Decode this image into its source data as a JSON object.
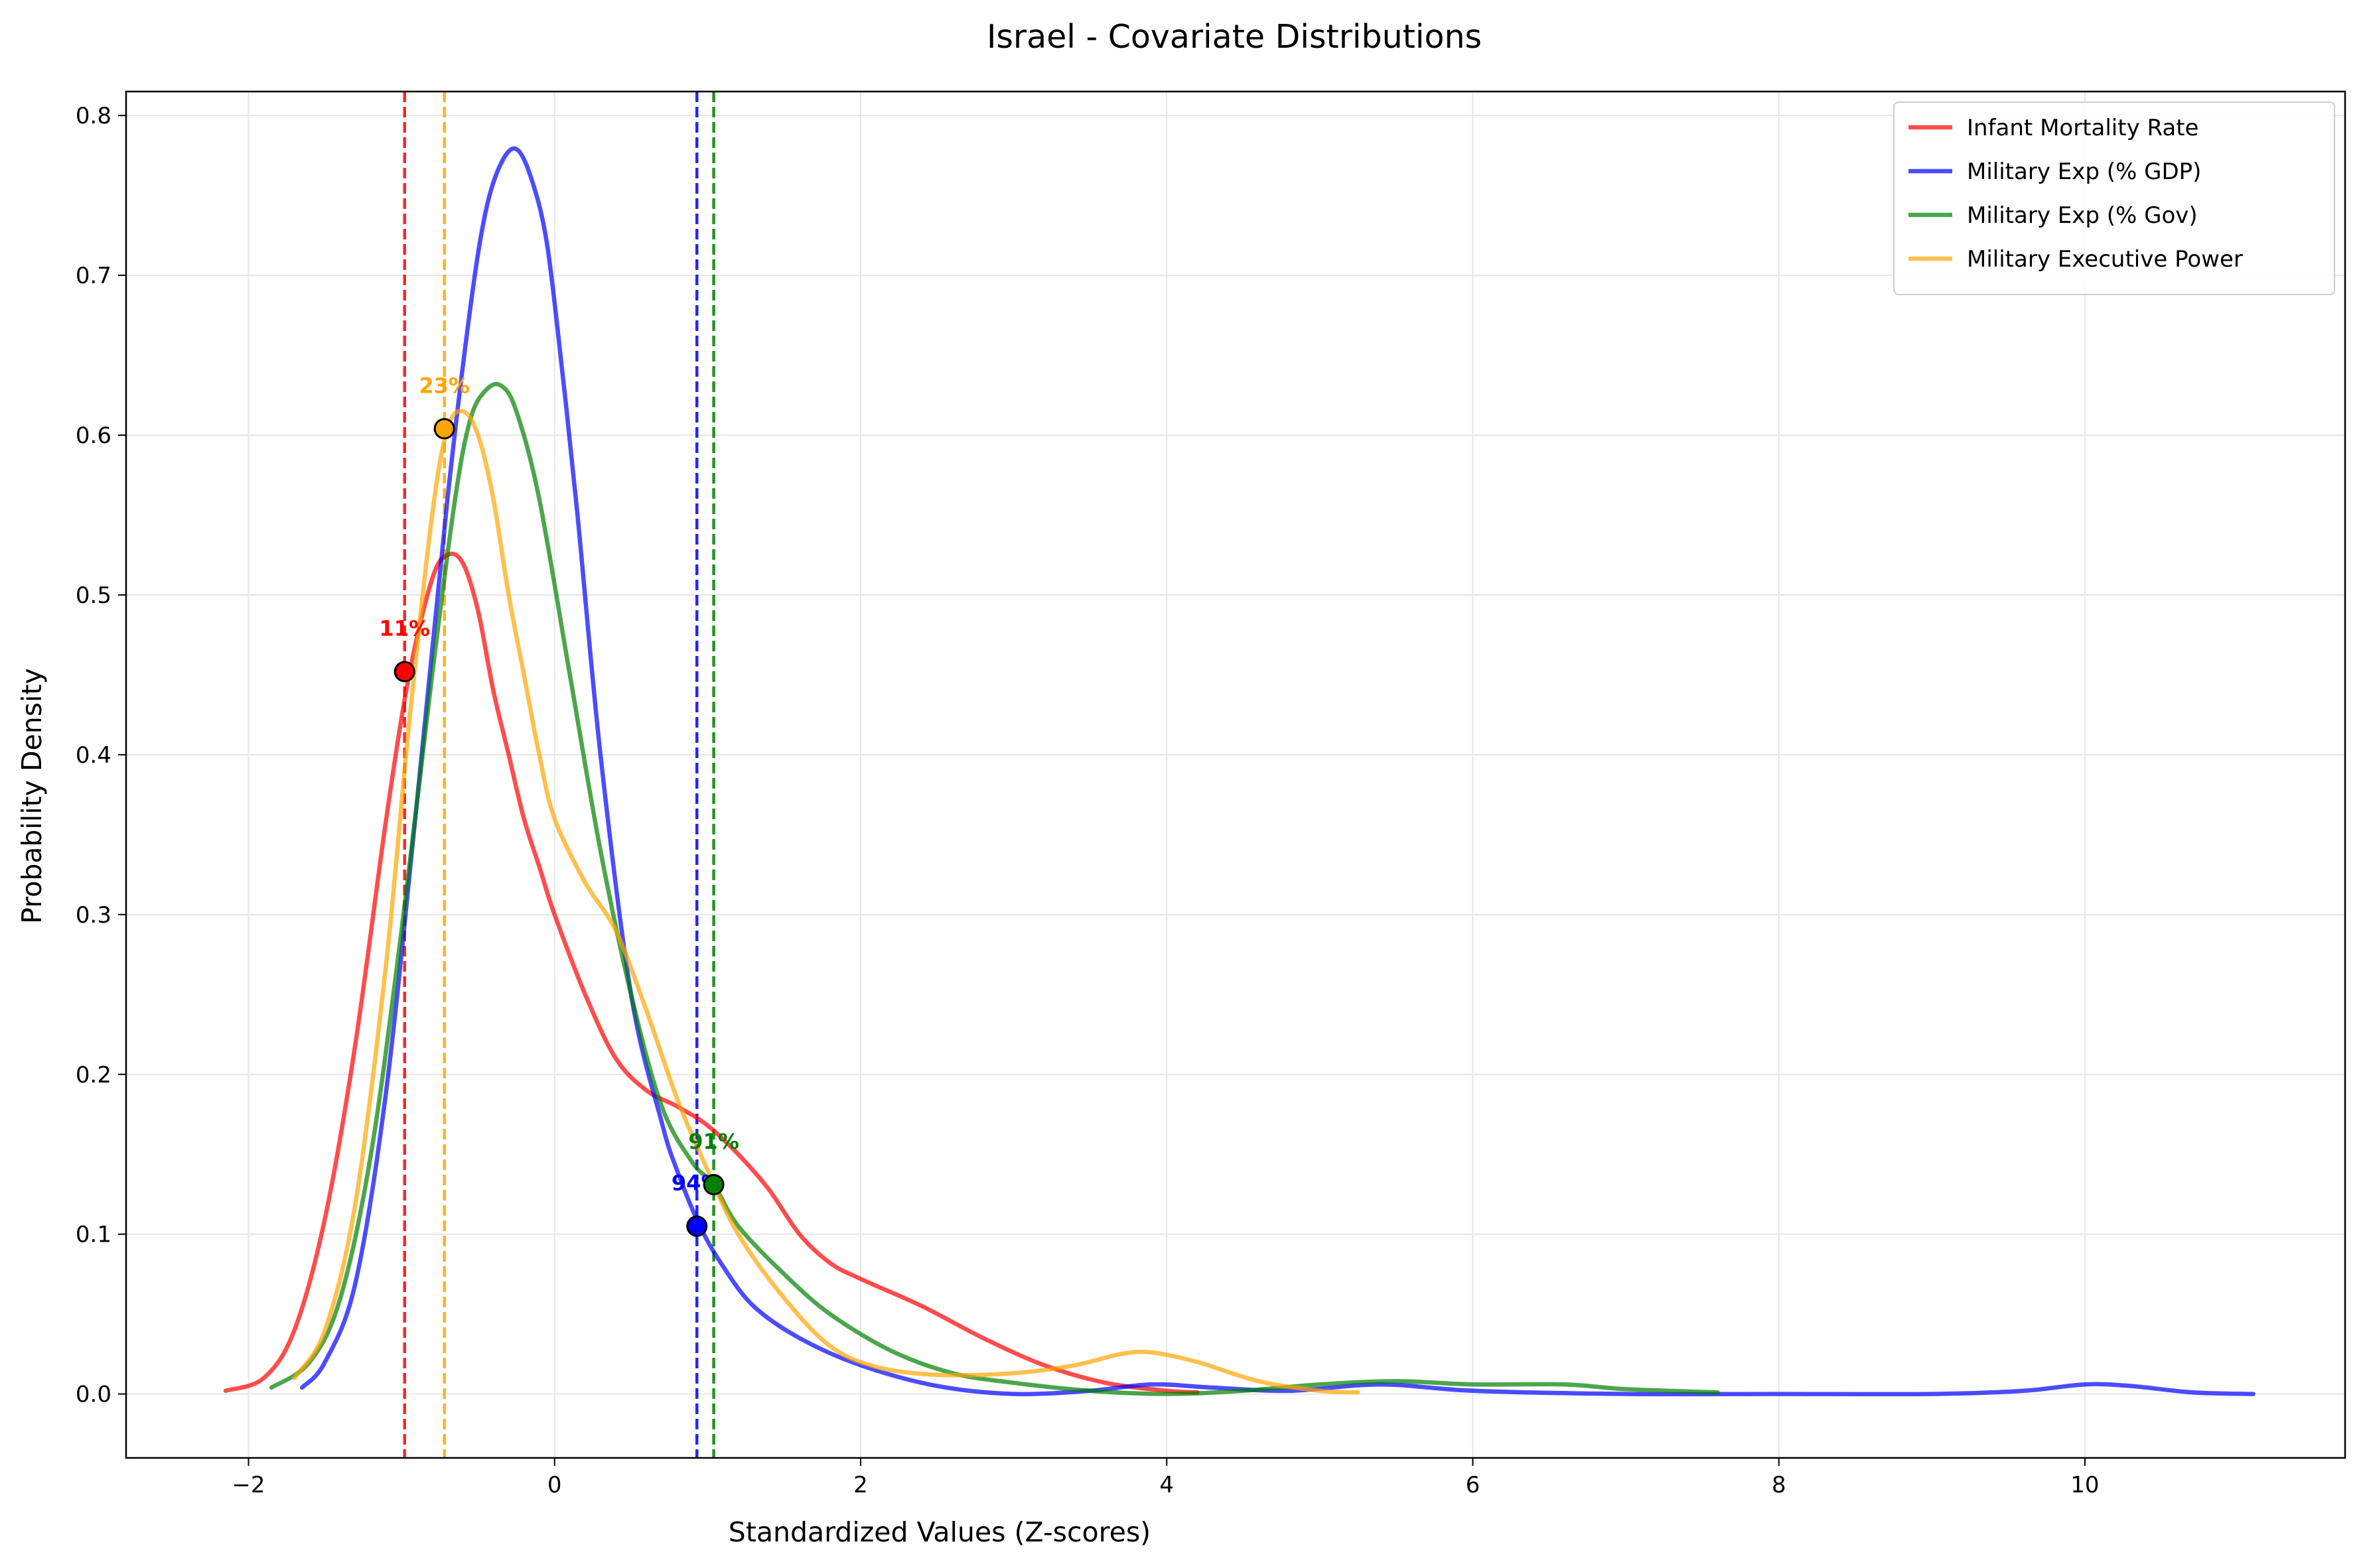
{
  "chart_data": {
    "type": "line",
    "title": "Israel - Covariate Distributions",
    "xlabel": "Standardized Values (Z-scores)",
    "ylabel": "Probability Density",
    "xlim": [
      -2.8,
      11.7
    ],
    "ylim": [
      -0.04,
      0.815
    ],
    "xticks": [
      -2,
      0,
      2,
      4,
      6,
      8,
      10
    ],
    "yticks": [
      0.0,
      0.1,
      0.2,
      0.3,
      0.4,
      0.5,
      0.6,
      0.7,
      0.8
    ],
    "grid": true,
    "legend_position": "top-right",
    "series": [
      {
        "name": "Infant Mortality Rate",
        "color": "#ff0000",
        "points": [
          [
            -2.15,
            0.002
          ],
          [
            -1.9,
            0.01
          ],
          [
            -1.7,
            0.04
          ],
          [
            -1.5,
            0.11
          ],
          [
            -1.3,
            0.22
          ],
          [
            -1.1,
            0.36
          ],
          [
            -0.95,
            0.45
          ],
          [
            -0.8,
            0.51
          ],
          [
            -0.7,
            0.525
          ],
          [
            -0.6,
            0.52
          ],
          [
            -0.5,
            0.49
          ],
          [
            -0.4,
            0.44
          ],
          [
            -0.3,
            0.4
          ],
          [
            -0.2,
            0.36
          ],
          [
            -0.1,
            0.33
          ],
          [
            0.0,
            0.3
          ],
          [
            0.2,
            0.25
          ],
          [
            0.4,
            0.21
          ],
          [
            0.6,
            0.19
          ],
          [
            0.8,
            0.18
          ],
          [
            1.0,
            0.168
          ],
          [
            1.2,
            0.15
          ],
          [
            1.4,
            0.128
          ],
          [
            1.6,
            0.1
          ],
          [
            1.8,
            0.082
          ],
          [
            2.0,
            0.072
          ],
          [
            2.4,
            0.055
          ],
          [
            2.8,
            0.035
          ],
          [
            3.2,
            0.018
          ],
          [
            3.6,
            0.007
          ],
          [
            4.0,
            0.002
          ],
          [
            4.2,
            0.001
          ]
        ],
        "marker": {
          "x": -0.98,
          "y": 0.452,
          "label": "11%"
        }
      },
      {
        "name": "Military Exp (% GDP)",
        "color": "#0000ff",
        "points": [
          [
            -1.65,
            0.004
          ],
          [
            -1.5,
            0.02
          ],
          [
            -1.3,
            0.07
          ],
          [
            -1.1,
            0.19
          ],
          [
            -0.9,
            0.37
          ],
          [
            -0.7,
            0.56
          ],
          [
            -0.55,
            0.68
          ],
          [
            -0.45,
            0.74
          ],
          [
            -0.35,
            0.77
          ],
          [
            -0.25,
            0.779
          ],
          [
            -0.15,
            0.76
          ],
          [
            -0.05,
            0.72
          ],
          [
            0.05,
            0.64
          ],
          [
            0.15,
            0.55
          ],
          [
            0.3,
            0.4
          ],
          [
            0.5,
            0.25
          ],
          [
            0.7,
            0.17
          ],
          [
            0.8,
            0.14
          ],
          [
            0.95,
            0.105
          ],
          [
            1.1,
            0.08
          ],
          [
            1.3,
            0.055
          ],
          [
            1.6,
            0.035
          ],
          [
            2.0,
            0.018
          ],
          [
            2.5,
            0.005
          ],
          [
            3.0,
            0.0
          ],
          [
            3.5,
            0.002
          ],
          [
            3.9,
            0.006
          ],
          [
            4.3,
            0.004
          ],
          [
            4.8,
            0.002
          ],
          [
            5.4,
            0.006
          ],
          [
            6.0,
            0.002
          ],
          [
            7.0,
            0.0
          ],
          [
            8.0,
            0.0
          ],
          [
            9.0,
            0.0
          ],
          [
            9.6,
            0.002
          ],
          [
            10.0,
            0.006
          ],
          [
            10.3,
            0.005
          ],
          [
            10.7,
            0.001
          ],
          [
            11.1,
            0.0
          ]
        ],
        "marker": {
          "x": 0.93,
          "y": 0.105,
          "label": "94%"
        }
      },
      {
        "name": "Military Exp (% Gov)",
        "color": "#008000",
        "points": [
          [
            -1.85,
            0.004
          ],
          [
            -1.6,
            0.02
          ],
          [
            -1.4,
            0.06
          ],
          [
            -1.2,
            0.15
          ],
          [
            -1.0,
            0.29
          ],
          [
            -0.8,
            0.45
          ],
          [
            -0.65,
            0.56
          ],
          [
            -0.55,
            0.61
          ],
          [
            -0.45,
            0.628
          ],
          [
            -0.35,
            0.631
          ],
          [
            -0.25,
            0.615
          ],
          [
            -0.1,
            0.56
          ],
          [
            0.1,
            0.45
          ],
          [
            0.3,
            0.34
          ],
          [
            0.5,
            0.25
          ],
          [
            0.7,
            0.18
          ],
          [
            0.9,
            0.145
          ],
          [
            1.04,
            0.131
          ],
          [
            1.2,
            0.105
          ],
          [
            1.5,
            0.075
          ],
          [
            1.8,
            0.05
          ],
          [
            2.2,
            0.027
          ],
          [
            2.6,
            0.013
          ],
          [
            3.0,
            0.007
          ],
          [
            3.5,
            0.002
          ],
          [
            4.0,
            0.0
          ],
          [
            4.5,
            0.002
          ],
          [
            5.0,
            0.006
          ],
          [
            5.5,
            0.008
          ],
          [
            6.0,
            0.006
          ],
          [
            6.6,
            0.006
          ],
          [
            7.0,
            0.003
          ],
          [
            7.6,
            0.001
          ]
        ],
        "marker": {
          "x": 1.04,
          "y": 0.131,
          "label": "91%"
        }
      },
      {
        "name": "Military Executive Power",
        "color": "#ffa500",
        "points": [
          [
            -1.7,
            0.01
          ],
          [
            -1.5,
            0.04
          ],
          [
            -1.3,
            0.12
          ],
          [
            -1.1,
            0.27
          ],
          [
            -0.95,
            0.42
          ],
          [
            -0.8,
            0.55
          ],
          [
            -0.7,
            0.604
          ],
          [
            -0.6,
            0.615
          ],
          [
            -0.5,
            0.6
          ],
          [
            -0.4,
            0.56
          ],
          [
            -0.3,
            0.5
          ],
          [
            -0.2,
            0.45
          ],
          [
            -0.1,
            0.4
          ],
          [
            0.0,
            0.36
          ],
          [
            0.2,
            0.32
          ],
          [
            0.4,
            0.29
          ],
          [
            0.6,
            0.24
          ],
          [
            0.8,
            0.185
          ],
          [
            1.0,
            0.14
          ],
          [
            1.2,
            0.1
          ],
          [
            1.5,
            0.06
          ],
          [
            1.8,
            0.03
          ],
          [
            2.1,
            0.017
          ],
          [
            2.5,
            0.012
          ],
          [
            3.0,
            0.013
          ],
          [
            3.4,
            0.018
          ],
          [
            3.7,
            0.025
          ],
          [
            3.9,
            0.026
          ],
          [
            4.2,
            0.02
          ],
          [
            4.6,
            0.008
          ],
          [
            5.0,
            0.002
          ],
          [
            5.25,
            0.001
          ]
        ],
        "marker": {
          "x": -0.72,
          "y": 0.604,
          "label": "23%"
        }
      }
    ],
    "vlines": [
      {
        "x": -0.98,
        "color": "#ff0000"
      },
      {
        "x": -0.72,
        "color": "#ffa500"
      },
      {
        "x": 0.93,
        "color": "#0000ff"
      },
      {
        "x": 1.04,
        "color": "#008000"
      }
    ]
  }
}
